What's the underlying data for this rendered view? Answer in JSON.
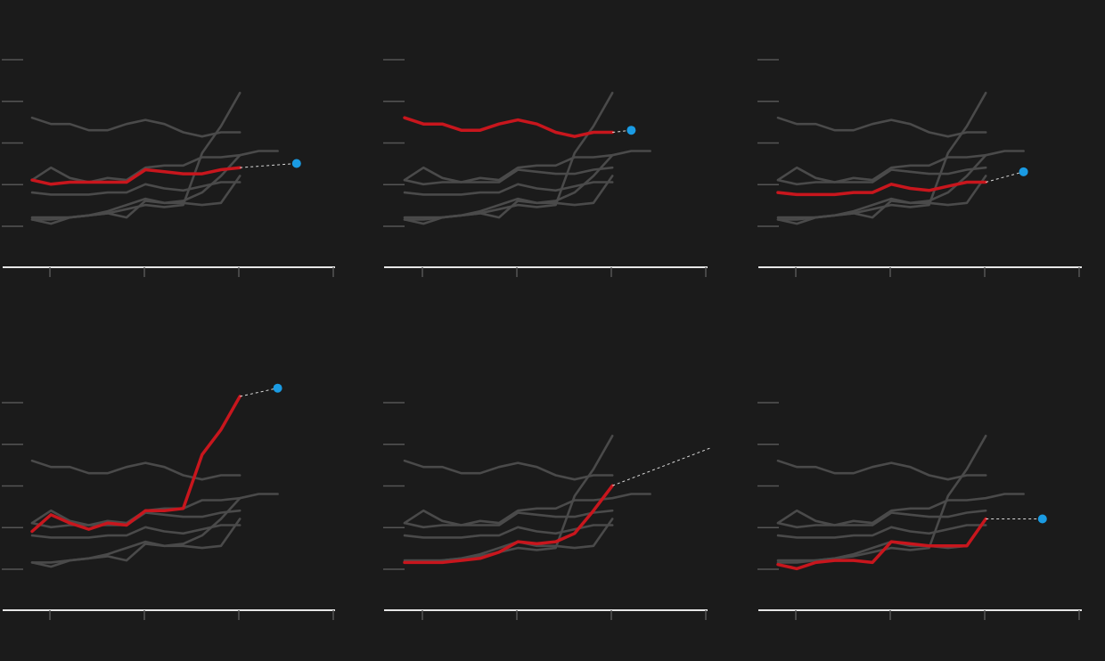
{
  "colors": {
    "background": "#1b1b1b",
    "context_line": "#4a4a4a",
    "highlight_line": "#c8161d",
    "projection_dot": "#1a9be3",
    "projection_dash": "#d8d8d8",
    "axis": "#e6e6e6",
    "ticks": "#555555"
  },
  "chart_data": [
    {
      "type": "line",
      "panel": "top-left",
      "grid": false,
      "x_range": [
        1,
        18
      ],
      "y_range": [
        0,
        100
      ],
      "series": [
        {
          "values": [
            72,
            69,
            69,
            66,
            66,
            69,
            71,
            69,
            65,
            63,
            65,
            65
          ],
          "highlight": false
        },
        {
          "values": [
            42,
            48,
            43,
            41,
            43,
            42,
            48,
            49,
            49,
            53,
            53,
            54,
            56,
            56
          ],
          "highlight": false
        },
        {
          "values": [
            36,
            35,
            35,
            35,
            36,
            36,
            40,
            38,
            37,
            39,
            41,
            41
          ],
          "highlight": false
        },
        {
          "values": [
            23,
            21,
            24,
            25,
            26,
            24,
            32,
            31,
            32,
            36,
            44,
            54
          ],
          "highlight": false
        },
        {
          "values": [
            24,
            24,
            24,
            25,
            26,
            28,
            30,
            29,
            30,
            55,
            68,
            84
          ],
          "highlight": false
        },
        {
          "values": [
            23,
            23,
            24,
            25,
            27,
            30,
            33,
            31,
            31,
            30,
            31,
            44
          ],
          "highlight": false
        },
        {
          "values": [
            42,
            40,
            41,
            41,
            41,
            41,
            47,
            46,
            45,
            45,
            47,
            48
          ],
          "highlight": true,
          "projection": {
            "x": 15,
            "y": 50
          }
        }
      ]
    },
    {
      "type": "line",
      "panel": "top-center",
      "grid": false,
      "x_range": [
        1,
        18
      ],
      "y_range": [
        0,
        100
      ],
      "series": [
        {
          "values": [
            42,
            48,
            43,
            41,
            43,
            42,
            48,
            49,
            49,
            53,
            53,
            54,
            56,
            56
          ],
          "highlight": false
        },
        {
          "values": [
            36,
            35,
            35,
            35,
            36,
            36,
            40,
            38,
            37,
            39,
            41,
            41
          ],
          "highlight": false
        },
        {
          "values": [
            23,
            21,
            24,
            25,
            26,
            24,
            32,
            31,
            32,
            36,
            44,
            54
          ],
          "highlight": false
        },
        {
          "values": [
            24,
            24,
            24,
            25,
            26,
            28,
            30,
            29,
            30,
            55,
            68,
            84
          ],
          "highlight": false
        },
        {
          "values": [
            23,
            23,
            24,
            25,
            27,
            30,
            33,
            31,
            31,
            30,
            31,
            44
          ],
          "highlight": false
        },
        {
          "values": [
            42,
            40,
            41,
            41,
            41,
            41,
            47,
            46,
            45,
            45,
            47,
            48
          ],
          "highlight": false
        },
        {
          "values": [
            72,
            69,
            69,
            66,
            66,
            69,
            71,
            69,
            65,
            63,
            65,
            65
          ],
          "highlight": true,
          "projection": {
            "x": 13,
            "y": 66
          }
        }
      ]
    },
    {
      "type": "line",
      "panel": "top-right",
      "grid": false,
      "x_range": [
        1,
        18
      ],
      "y_range": [
        0,
        100
      ],
      "series": [
        {
          "values": [
            72,
            69,
            69,
            66,
            66,
            69,
            71,
            69,
            65,
            63,
            65,
            65
          ],
          "highlight": false
        },
        {
          "values": [
            42,
            48,
            43,
            41,
            43,
            42,
            48,
            49,
            49,
            53,
            53,
            54,
            56,
            56
          ],
          "highlight": false
        },
        {
          "values": [
            23,
            21,
            24,
            25,
            26,
            24,
            32,
            31,
            32,
            36,
            44,
            54
          ],
          "highlight": false
        },
        {
          "values": [
            24,
            24,
            24,
            25,
            26,
            28,
            30,
            29,
            30,
            55,
            68,
            84
          ],
          "highlight": false
        },
        {
          "values": [
            23,
            23,
            24,
            25,
            27,
            30,
            33,
            31,
            31,
            30,
            31,
            44
          ],
          "highlight": false
        },
        {
          "values": [
            42,
            40,
            41,
            41,
            41,
            41,
            47,
            46,
            45,
            45,
            47,
            48
          ],
          "highlight": false
        },
        {
          "values": [
            36,
            35,
            35,
            35,
            36,
            36,
            40,
            38,
            37,
            39,
            41,
            41
          ],
          "highlight": true,
          "projection": {
            "x": 14,
            "y": 46
          }
        }
      ]
    },
    {
      "type": "line",
      "panel": "bottom-left",
      "grid": false,
      "x_range": [
        1,
        18
      ],
      "y_range": [
        0,
        100
      ],
      "series": [
        {
          "values": [
            72,
            69,
            69,
            66,
            66,
            69,
            71,
            69,
            65,
            63,
            65,
            65
          ],
          "highlight": false
        },
        {
          "values": [
            42,
            48,
            43,
            41,
            43,
            42,
            48,
            49,
            49,
            53,
            53,
            54,
            56,
            56
          ],
          "highlight": false
        },
        {
          "values": [
            36,
            35,
            35,
            35,
            36,
            36,
            40,
            38,
            37,
            39,
            41,
            41
          ],
          "highlight": false
        },
        {
          "values": [
            23,
            21,
            24,
            25,
            26,
            24,
            32,
            31,
            32,
            36,
            44,
            54
          ],
          "highlight": false
        },
        {
          "values": [
            23,
            23,
            24,
            25,
            27,
            30,
            33,
            31,
            31,
            30,
            31,
            44
          ],
          "highlight": false
        },
        {
          "values": [
            42,
            40,
            41,
            41,
            41,
            41,
            47,
            46,
            45,
            45,
            47,
            48
          ],
          "highlight": false
        },
        {
          "values": [
            38,
            46,
            42,
            39,
            42,
            41,
            48,
            48,
            49,
            75,
            87,
            103
          ],
          "highlight": true,
          "projection": {
            "x": 14,
            "y": 107
          }
        }
      ]
    },
    {
      "type": "line",
      "panel": "bottom-center",
      "grid": false,
      "x_range": [
        1,
        18
      ],
      "y_range": [
        0,
        100
      ],
      "series": [
        {
          "values": [
            72,
            69,
            69,
            66,
            66,
            69,
            71,
            69,
            65,
            63,
            65,
            65
          ],
          "highlight": false
        },
        {
          "values": [
            42,
            48,
            43,
            41,
            43,
            42,
            48,
            49,
            49,
            53,
            53,
            54,
            56,
            56
          ],
          "highlight": false
        },
        {
          "values": [
            36,
            35,
            35,
            35,
            36,
            36,
            40,
            38,
            37,
            39,
            41,
            41
          ],
          "highlight": false
        },
        {
          "values": [
            24,
            24,
            24,
            25,
            26,
            28,
            30,
            29,
            30,
            55,
            68,
            84
          ],
          "highlight": false
        },
        {
          "values": [
            23,
            23,
            24,
            25,
            27,
            30,
            33,
            31,
            31,
            30,
            31,
            44
          ],
          "highlight": false
        },
        {
          "values": [
            42,
            40,
            41,
            41,
            41,
            41,
            47,
            46,
            45,
            45,
            47,
            48
          ],
          "highlight": false
        },
        {
          "values": [
            23,
            23,
            23,
            24,
            25,
            28,
            33,
            32,
            33,
            37,
            48,
            60
          ],
          "highlight": true,
          "projection": {
            "x": 18,
            "y": 81
          }
        }
      ]
    },
    {
      "type": "line",
      "panel": "bottom-right",
      "grid": false,
      "x_range": [
        1,
        18
      ],
      "y_range": [
        0,
        100
      ],
      "series": [
        {
          "values": [
            72,
            69,
            69,
            66,
            66,
            69,
            71,
            69,
            65,
            63,
            65,
            65
          ],
          "highlight": false
        },
        {
          "values": [
            42,
            48,
            43,
            41,
            43,
            42,
            48,
            49,
            49,
            53,
            53,
            54,
            56,
            56
          ],
          "highlight": false
        },
        {
          "values": [
            36,
            35,
            35,
            35,
            36,
            36,
            40,
            38,
            37,
            39,
            41,
            41
          ],
          "highlight": false
        },
        {
          "values": [
            24,
            24,
            24,
            25,
            26,
            28,
            30,
            29,
            30,
            55,
            68,
            84
          ],
          "highlight": false
        },
        {
          "values": [
            23,
            23,
            24,
            25,
            27,
            30,
            33,
            31,
            31,
            30,
            31,
            44
          ],
          "highlight": false
        },
        {
          "values": [
            42,
            40,
            41,
            41,
            41,
            41,
            47,
            46,
            45,
            45,
            47,
            48
          ],
          "highlight": false
        },
        {
          "values": [
            22,
            20,
            23,
            24,
            24,
            23,
            33,
            32,
            31,
            31,
            31,
            44
          ],
          "highlight": true,
          "projection": {
            "x": 15,
            "y": 44
          }
        }
      ]
    }
  ]
}
